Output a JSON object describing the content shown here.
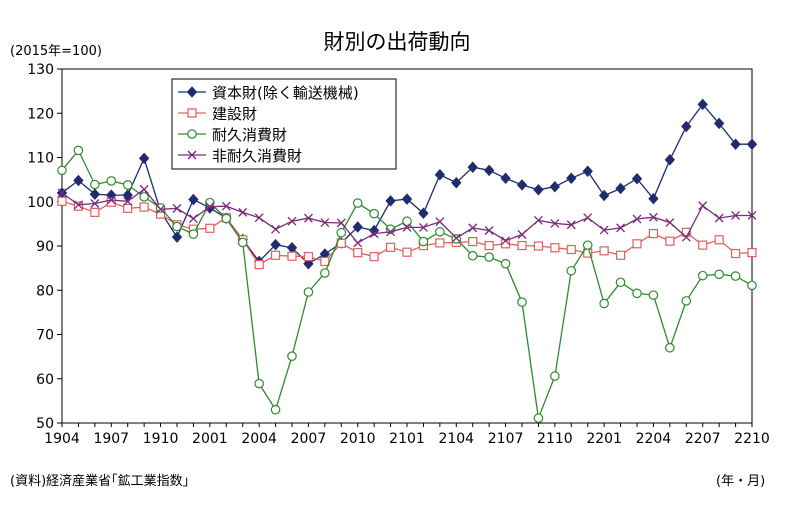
{
  "chart_data": {
    "type": "line",
    "title": "財別の出荷動向",
    "unit_label": "(2015年=100)",
    "source": "(資料)経済産業省｢鉱工業指数｣",
    "xaxis_unit": "(年・月)",
    "ylim": [
      50,
      130
    ],
    "yticks": [
      50,
      60,
      70,
      80,
      90,
      100,
      110,
      120,
      130
    ],
    "grid": false,
    "legend_position": "top-left",
    "x_count": 43,
    "xtick_labels": [
      "1904",
      "1907",
      "1910",
      "2001",
      "2004",
      "2007",
      "2010",
      "2101",
      "2104",
      "2107",
      "2110",
      "2201",
      "2204",
      "2207",
      "2210"
    ],
    "xtick_index": [
      0,
      3,
      6,
      9,
      12,
      15,
      18,
      21,
      24,
      27,
      30,
      33,
      36,
      39,
      42
    ],
    "series": [
      {
        "name": "資本財(除く輸送機械)",
        "color": "#1f2d6e",
        "marker": "diamond",
        "values": [
          102.0,
          104.8,
          101.7,
          101.5,
          101.5,
          109.8,
          97.8,
          92.0,
          100.5,
          98.6,
          96.3,
          91.5,
          86.5,
          90.3,
          89.6,
          86.0,
          88.2,
          90.7,
          94.3,
          93.5,
          100.2,
          100.6,
          97.4,
          106.1,
          104.3,
          107.8,
          107.1,
          105.3,
          103.8,
          102.7,
          103.4,
          105.3,
          106.9,
          101.4,
          103.0,
          105.2,
          100.7,
          109.5,
          117.0,
          122.0,
          117.7,
          113.0,
          113.0
        ]
      },
      {
        "name": "建設財",
        "color": "#e06060",
        "marker": "square",
        "values": [
          100.1,
          99.0,
          97.6,
          99.9,
          98.5,
          98.8,
          97.2,
          94.8,
          93.8,
          94.0,
          96.4,
          91.4,
          85.8,
          87.9,
          87.7,
          87.6,
          86.5,
          90.6,
          88.5,
          87.6,
          89.7,
          88.6,
          90.1,
          90.7,
          90.8,
          91.0,
          90.1,
          90.5,
          90.1,
          90.0,
          89.6,
          89.2,
          88.4,
          88.9,
          87.9,
          90.5,
          92.8,
          91.1,
          93.1,
          90.2,
          91.4,
          88.3,
          88.5
        ]
      },
      {
        "name": "耐久消費財",
        "color": "#2e8b2e",
        "marker": "circle",
        "values": [
          107.1,
          111.6,
          103.9,
          104.7,
          103.8,
          101.1,
          98.6,
          94.4,
          92.7,
          99.8,
          96.2,
          90.8,
          58.9,
          53.0,
          65.1,
          79.6,
          83.9,
          93.0,
          99.7,
          97.3,
          93.8,
          95.6,
          91.0,
          93.2,
          91.6,
          87.8,
          87.5,
          86.0,
          77.3,
          51.1,
          60.6,
          84.4,
          90.2,
          77.0,
          81.8,
          79.3,
          78.9,
          67.0,
          77.6,
          83.3,
          83.6,
          83.2,
          81.1
        ]
      },
      {
        "name": "非耐久消費財",
        "color": "#7a2a7a",
        "marker": "x",
        "values": [
          102.0,
          99.3,
          99.6,
          100.4,
          100.1,
          102.8,
          98.3,
          98.5,
          96.2,
          98.9,
          99.0,
          97.6,
          96.4,
          93.8,
          95.6,
          96.3,
          95.3,
          95.2,
          90.7,
          92.8,
          93.2,
          94.2,
          94.2,
          95.5,
          91.8,
          94.1,
          93.5,
          91.2,
          92.6,
          95.8,
          95.1,
          94.8,
          96.4,
          93.6,
          94.1,
          96.1,
          96.5,
          95.3,
          92.0,
          99.1,
          96.3,
          96.9,
          96.9
        ]
      }
    ]
  }
}
